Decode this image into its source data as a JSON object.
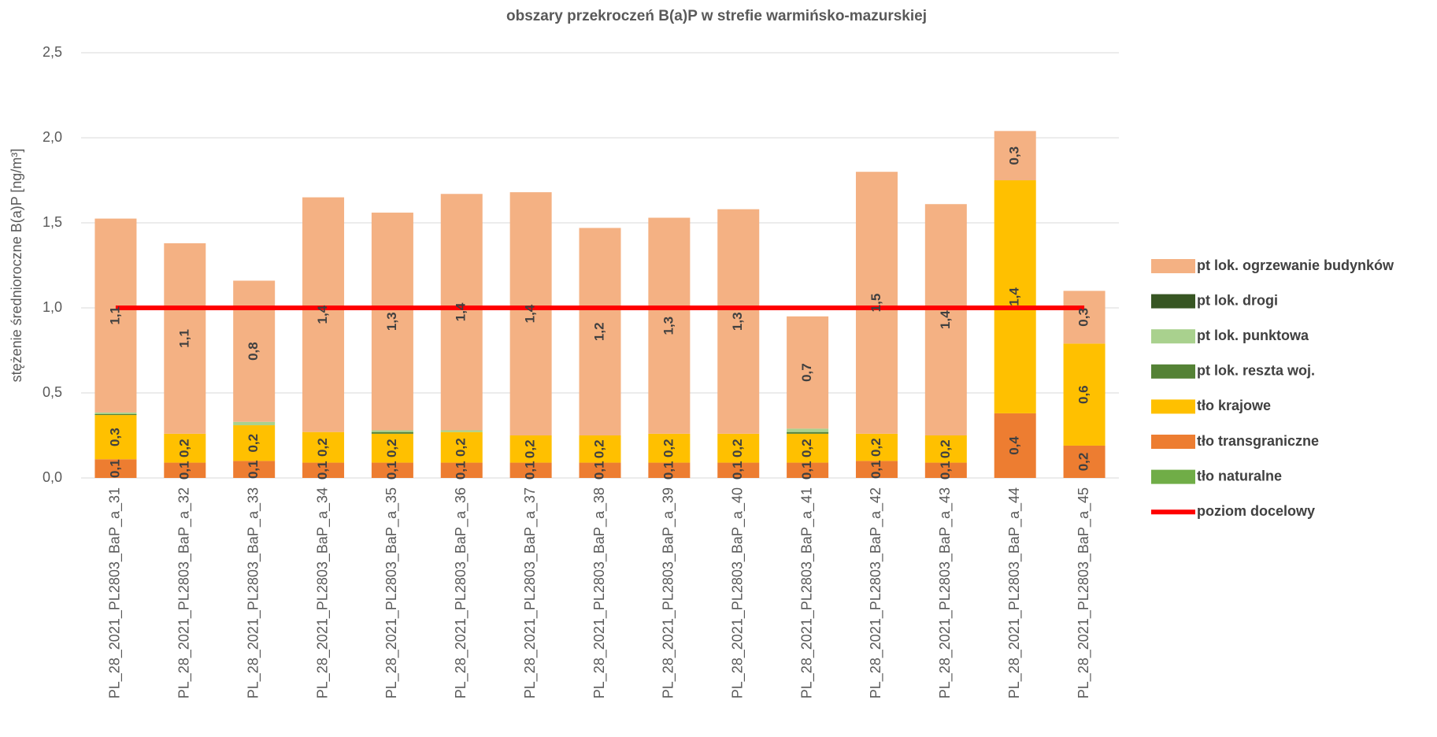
{
  "chart_data": {
    "type": "bar",
    "stacked": true,
    "title": "obszary przekroczeń B(a)P w strefie warmińsko-mazurskiej",
    "y_label": "stężenie średnioroczne B(a)P [ng/m³]",
    "categories": [
      "PL_28_2021_PL2803_BaP_a_31",
      "PL_28_2021_PL2803_BaP_a_32",
      "PL_28_2021_PL2803_BaP_a_33",
      "PL_28_2021_PL2803_BaP_a_34",
      "PL_28_2021_PL2803_BaP_a_35",
      "PL_28_2021_PL2803_BaP_a_36",
      "PL_28_2021_PL2803_BaP_a_37",
      "PL_28_2021_PL2803_BaP_a_38",
      "PL_28_2021_PL2803_BaP_a_39",
      "PL_28_2021_PL2803_BaP_a_40",
      "PL_28_2021_PL2803_BaP_a_41",
      "PL_28_2021_PL2803_BaP_a_42",
      "PL_28_2021_PL2803_BaP_a_43",
      "PL_28_2021_PL2803_BaP_a_44",
      "PL_28_2021_PL2803_BaP_a_45"
    ],
    "ylim": [
      0,
      2.5
    ],
    "yticks": [
      {
        "value": 0,
        "label": "0,0"
      },
      {
        "value": 0.5,
        "label": "0,5"
      },
      {
        "value": 1,
        "label": "1,0"
      },
      {
        "value": 1.5,
        "label": "1,5"
      },
      {
        "value": 2,
        "label": "2,0"
      },
      {
        "value": 2.5,
        "label": "2,5"
      }
    ],
    "grid": true,
    "legend": "right",
    "series": [
      {
        "name": "tło naturalne",
        "color": "#70ad47",
        "values": [
          0,
          0,
          0,
          0,
          0,
          0,
          0,
          0,
          0,
          0,
          0,
          0,
          0,
          0,
          0
        ]
      },
      {
        "name": "tło transgraniczne",
        "color": "#ed7d31",
        "values": [
          0.11,
          0.09,
          0.1,
          0.09,
          0.09,
          0.09,
          0.09,
          0.09,
          0.09,
          0.09,
          0.09,
          0.1,
          0.09,
          0.38,
          0.19
        ],
        "value_labels": [
          "0,1",
          "0,1",
          "0,1",
          "0,1",
          "0,1",
          "0,1",
          "0,1",
          "0,1",
          "0,1",
          "0,1",
          "0,1",
          "0,1",
          "0,1",
          "0,4",
          "0,2"
        ]
      },
      {
        "name": "tło krajowe",
        "color": "#ffc000",
        "values": [
          0.26,
          0.17,
          0.21,
          0.18,
          0.17,
          0.18,
          0.16,
          0.16,
          0.17,
          0.17,
          0.17,
          0.16,
          0.16,
          1.37,
          0.6
        ],
        "value_labels": [
          "0,3",
          "0,2",
          "0,2",
          "0,2",
          "0,2",
          "0,2",
          "0,2",
          "0,2",
          "0,2",
          "0,2",
          "0,2",
          "0,2",
          "0,2",
          "1,4",
          "0,6"
        ]
      },
      {
        "name": "pt lok. reszta woj.",
        "color": "#548235",
        "values": [
          0.005,
          0,
          0,
          0,
          0.01,
          0,
          0,
          0,
          0,
          0,
          0.01,
          0,
          0,
          0,
          0
        ]
      },
      {
        "name": "pt lok. punktowa",
        "color": "#a9d18e",
        "values": [
          0.01,
          0,
          0.02,
          0,
          0.01,
          0.01,
          0,
          0,
          0,
          0,
          0.02,
          0,
          0,
          0,
          0
        ]
      },
      {
        "name": "pt lok. drogi",
        "color": "#375623",
        "values": [
          0,
          0,
          0,
          0,
          0,
          0,
          0,
          0,
          0,
          0,
          0,
          0,
          0,
          0,
          0
        ]
      },
      {
        "name": "pt lok. ogrzewanie budynków",
        "color": "#f4b183",
        "values": [
          1.14,
          1.12,
          0.83,
          1.38,
          1.28,
          1.39,
          1.43,
          1.22,
          1.27,
          1.32,
          0.66,
          1.54,
          1.36,
          0.29,
          0.31
        ],
        "value_labels": [
          "1,1",
          "1,1",
          "0,8",
          "1,4",
          "1,3",
          "1,4",
          "1,4",
          "1,2",
          "1,3",
          "1,3",
          "0,7",
          "1,5",
          "1,4",
          "0,3",
          "0,3"
        ]
      },
      {
        "name": "poziom docelowy",
        "type": "line",
        "color": "#ff0000",
        "values": [
          1,
          1,
          1,
          1,
          1,
          1,
          1,
          1,
          1,
          1,
          1,
          1,
          1,
          1,
          1
        ]
      }
    ]
  }
}
